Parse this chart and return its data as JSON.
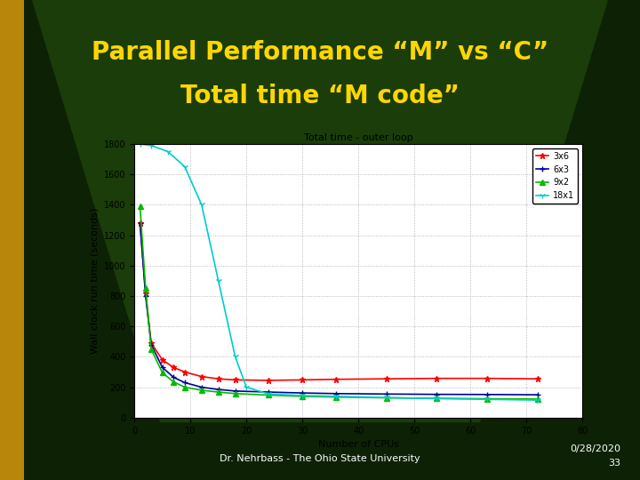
{
  "title_line1": "Parallel Performance “M” vs “C”",
  "title_line2": "Total time “M code”",
  "title_color": "#FFD700",
  "bg_color": "#1a3d0a",
  "bg_dark": "#0d2205",
  "plot_title": "Total time - outer loop",
  "xlabel": "Number of CPUs",
  "ylabel": "Wall clock run time (seconds)",
  "xlim": [
    0,
    80
  ],
  "ylim": [
    0,
    1800
  ],
  "xticks": [
    0,
    10,
    20,
    30,
    40,
    50,
    60,
    70,
    80
  ],
  "yticks": [
    0,
    200,
    400,
    600,
    800,
    1000,
    1200,
    1400,
    1600,
    1800
  ],
  "footer_left": "Dr. Nehrbass - The Ohio State University",
  "date_text": "0/28/2020",
  "page_num": "33",
  "gold_bar_color": "#B8860B",
  "series": [
    {
      "label": "3x6",
      "color": "#FF0000",
      "marker": "*",
      "x": [
        1,
        2,
        3,
        5,
        7,
        9,
        12,
        15,
        18,
        24,
        30,
        36,
        45,
        54,
        63,
        72
      ],
      "y": [
        1280,
        820,
        490,
        380,
        330,
        300,
        270,
        255,
        248,
        245,
        248,
        252,
        255,
        258,
        258,
        255
      ]
    },
    {
      "label": "6x3",
      "color": "#000099",
      "marker": "+",
      "x": [
        1,
        2,
        3,
        5,
        7,
        9,
        12,
        15,
        18,
        24,
        30,
        36,
        45,
        54,
        63,
        72
      ],
      "y": [
        1280,
        800,
        480,
        330,
        265,
        230,
        200,
        185,
        175,
        168,
        162,
        158,
        155,
        153,
        152,
        150
      ]
    },
    {
      "label": "9x2",
      "color": "#00BB00",
      "marker": "^",
      "x": [
        1,
        2,
        3,
        5,
        7,
        9,
        12,
        15,
        18,
        24,
        30,
        36,
        45,
        54,
        63,
        72
      ],
      "y": [
        1390,
        850,
        450,
        295,
        235,
        200,
        180,
        168,
        158,
        148,
        140,
        135,
        130,
        127,
        124,
        122
      ]
    },
    {
      "label": "18x1",
      "color": "#00CCCC",
      "marker": "1",
      "x": [
        1,
        3,
        6,
        9,
        12,
        15,
        18,
        20,
        24,
        30,
        36,
        45,
        54,
        63,
        72
      ],
      "y": [
        1800,
        1790,
        1750,
        1650,
        1400,
        900,
        400,
        200,
        155,
        145,
        140,
        132,
        125,
        120,
        115
      ]
    }
  ]
}
